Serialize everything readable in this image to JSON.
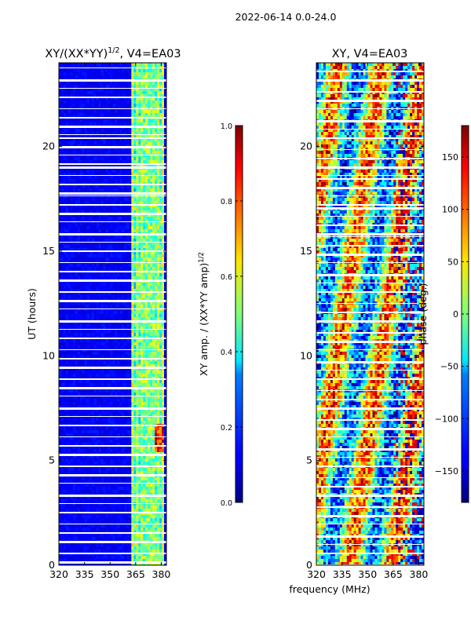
{
  "suptitle": "2022-06-14 0.0-24.0",
  "chart_data": [
    {
      "type": "heatmap",
      "title": "XY/(XX*YY)",
      "title_exponent": "1/2",
      "title_suffix": ", V4=EA03",
      "xlabel": "",
      "ylabel": "UT (hours)",
      "xlim": [
        320,
        383
      ],
      "ylim": [
        0,
        24
      ],
      "xticks": [
        320,
        335,
        350,
        365,
        380
      ],
      "xtick_labels": [
        "320",
        "335",
        "350",
        "365",
        "380"
      ],
      "yticks": [
        0,
        5,
        10,
        15,
        20
      ],
      "ytick_labels": [
        "0",
        "5",
        "10",
        "15",
        "20"
      ],
      "colormap": "jet",
      "colorbar": {
        "label": "XY amp. / (XX*YY amp)",
        "label_exponent": "1/2",
        "range": [
          0.0,
          1.0
        ],
        "ticks": [
          0.0,
          0.2,
          0.4,
          0.6,
          0.8,
          1.0
        ],
        "tick_labels": [
          "0.0",
          "0.2",
          "0.4",
          "0.6",
          "0.8",
          "1.0"
        ]
      }
    },
    {
      "type": "heatmap",
      "title": "XY, V4=EA03",
      "xlabel": "frequency (MHz)",
      "ylabel": "",
      "xlim": [
        320,
        383
      ],
      "ylim": [
        0,
        24
      ],
      "xticks": [
        320,
        335,
        350,
        365,
        380
      ],
      "xtick_labels": [
        "320",
        "335",
        "350",
        "365",
        "380"
      ],
      "yticks": [
        0,
        5,
        10,
        15,
        20
      ],
      "ytick_labels": [
        "0",
        "5",
        "10",
        "15",
        "20"
      ],
      "colormap": "jet",
      "colorbar": {
        "label": "phase (deg.)",
        "range": [
          -180,
          180
        ],
        "ticks": [
          -150,
          -100,
          -50,
          0,
          50,
          100,
          150
        ],
        "tick_labels": [
          "−150",
          "−100",
          "−50",
          "0",
          "50",
          "100",
          "150"
        ]
      }
    }
  ]
}
